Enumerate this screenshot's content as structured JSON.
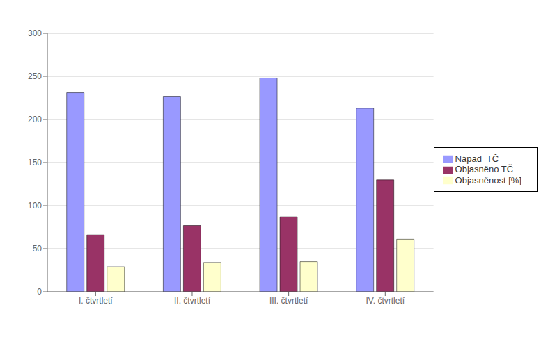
{
  "chart_data": {
    "type": "bar",
    "categories": [
      "I. čtvrtletí",
      "II. čtvrtletí",
      "III. čtvrtletí",
      "IV. čtvrtletí"
    ],
    "series": [
      {
        "name": "Nápad  TČ",
        "color": "#9999FF",
        "values": [
          231,
          227,
          248,
          213
        ]
      },
      {
        "name": "Objasněno TČ",
        "color": "#993366",
        "values": [
          66,
          77,
          87,
          130
        ]
      },
      {
        "name": "Objasněnost [%]",
        "color": "#FFFFCC",
        "values": [
          29,
          34,
          35,
          61
        ]
      }
    ],
    "ylim": [
      0,
      300
    ],
    "yticks": [
      0,
      50,
      100,
      150,
      200,
      250,
      300
    ],
    "grid": true,
    "legend": "right"
  }
}
